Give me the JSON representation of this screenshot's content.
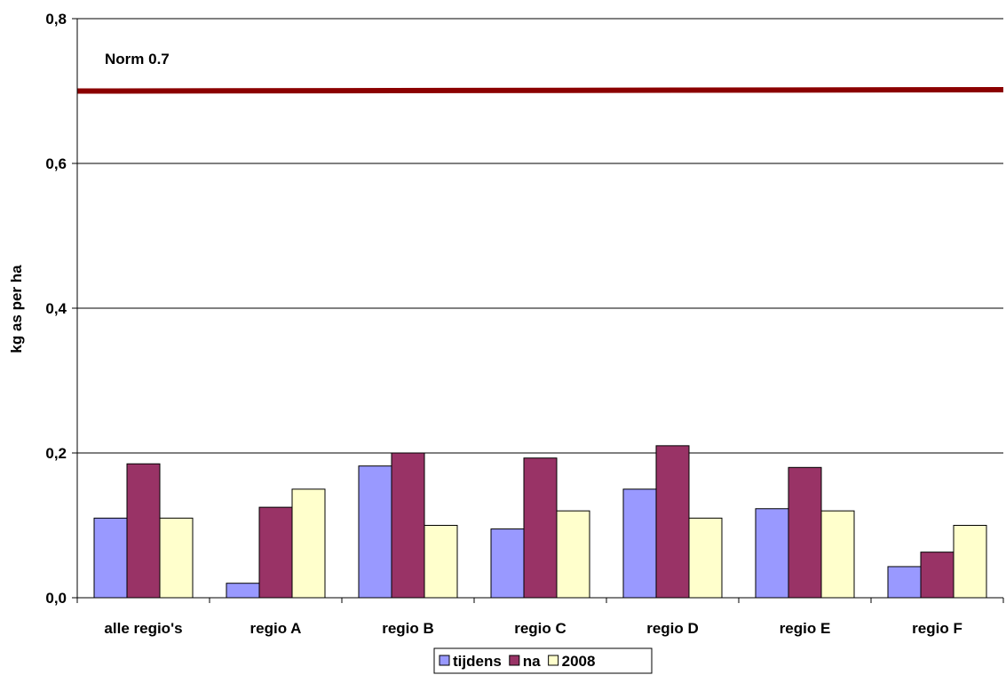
{
  "chart_data": {
    "type": "bar",
    "title": "",
    "xlabel": "",
    "ylabel": "kg as per ha",
    "ylim": [
      0,
      0.8
    ],
    "yticks": [
      "0,0",
      "0,2",
      "0,4",
      "0,6",
      "0,8"
    ],
    "categories": [
      "alle regio's",
      "regio A",
      "regio B",
      "regio C",
      "regio D",
      "regio E",
      "regio F"
    ],
    "series": [
      {
        "name": "tijdens",
        "color": "#9999ff",
        "values": [
          0.11,
          0.02,
          0.182,
          0.095,
          0.15,
          0.123,
          0.043
        ]
      },
      {
        "name": "na",
        "color": "#993366",
        "values": [
          0.185,
          0.125,
          0.2,
          0.193,
          0.21,
          0.18,
          0.063
        ]
      },
      {
        "name": "2008",
        "color": "#ffffcc",
        "values": [
          0.11,
          0.15,
          0.1,
          0.12,
          0.11,
          0.12,
          0.1
        ]
      }
    ],
    "reference_line": {
      "label": "Norm 0.7",
      "value": 0.7,
      "color": "#8b0000"
    },
    "grid": true,
    "legend": "bottom"
  }
}
